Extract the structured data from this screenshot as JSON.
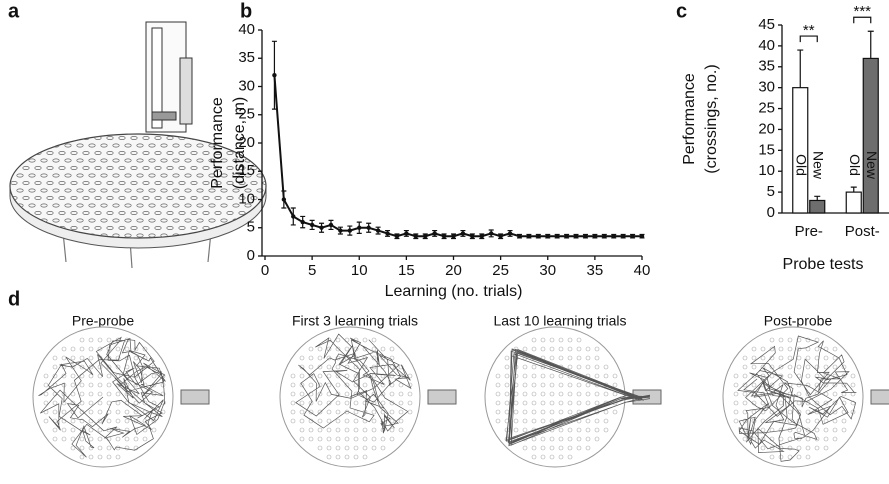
{
  "panel_a": {
    "label": "a"
  },
  "panel_d": {
    "label": "d",
    "titles": [
      "Pre-probe",
      "First 3 learning trials",
      "Last 10 learning trials",
      "Post-probe"
    ]
  },
  "chart_data": [
    {
      "type": "line",
      "panel": "b",
      "ylabel": [
        "Performance",
        "(distance, m)"
      ],
      "xlabel": "Learning (no. trials)",
      "x": [
        1,
        2,
        3,
        4,
        5,
        6,
        7,
        8,
        9,
        10,
        11,
        12,
        13,
        14,
        15,
        16,
        17,
        18,
        19,
        20,
        21,
        22,
        23,
        24,
        25,
        26,
        27,
        28,
        29,
        30,
        31,
        32,
        33,
        34,
        35,
        36,
        37,
        38,
        39,
        40
      ],
      "values": [
        32,
        10,
        7,
        6,
        5.5,
        5,
        5.5,
        4.5,
        4.5,
        5,
        5,
        4.5,
        4,
        3.5,
        4,
        3.5,
        3.5,
        4,
        3.5,
        3.5,
        4,
        3.5,
        3.5,
        4,
        3.5,
        4,
        3.5,
        3.5,
        3.5,
        3.5,
        3.5,
        3.5,
        3.5,
        3.5,
        3.5,
        3.5,
        3.5,
        3.5,
        3.5,
        3.5
      ],
      "errors": [
        6,
        1.5,
        1.5,
        1,
        0.8,
        0.8,
        0.8,
        0.6,
        0.8,
        1,
        0.8,
        0.6,
        0.5,
        0.4,
        0.5,
        0.4,
        0.4,
        0.5,
        0.4,
        0.4,
        0.5,
        0.4,
        0.4,
        0.6,
        0.4,
        0.5,
        0.3,
        0.3,
        0.3,
        0.3,
        0.3,
        0.3,
        0.3,
        0.3,
        0.3,
        0.3,
        0.3,
        0.3,
        0.3,
        0.3
      ],
      "color": "#111111",
      "xlim": [
        0,
        40
      ],
      "xticks": [
        0,
        5,
        10,
        15,
        20,
        25,
        30,
        35,
        40
      ],
      "ylim": [
        0,
        40
      ],
      "yticks": [
        0,
        5,
        10,
        15,
        20,
        25,
        30,
        35,
        40
      ]
    },
    {
      "type": "bar",
      "panel": "c",
      "ylabel": [
        "Performance",
        "(crossings, no.)"
      ],
      "xlabel": "Probe tests",
      "categories": [
        "Pre-",
        "Post-"
      ],
      "series": [
        {
          "name": "Old",
          "color": "#ffffff",
          "values": [
            30,
            5
          ],
          "errors": [
            9,
            1.2
          ]
        },
        {
          "name": "New",
          "color": "#6e6e6e",
          "values": [
            3,
            37
          ],
          "errors": [
            1,
            6.5
          ]
        }
      ],
      "annotations": [
        "**",
        "***"
      ],
      "ylim": [
        0,
        45
      ],
      "yticks": [
        0,
        5,
        10,
        15,
        20,
        25,
        30,
        35,
        40,
        45
      ]
    }
  ]
}
